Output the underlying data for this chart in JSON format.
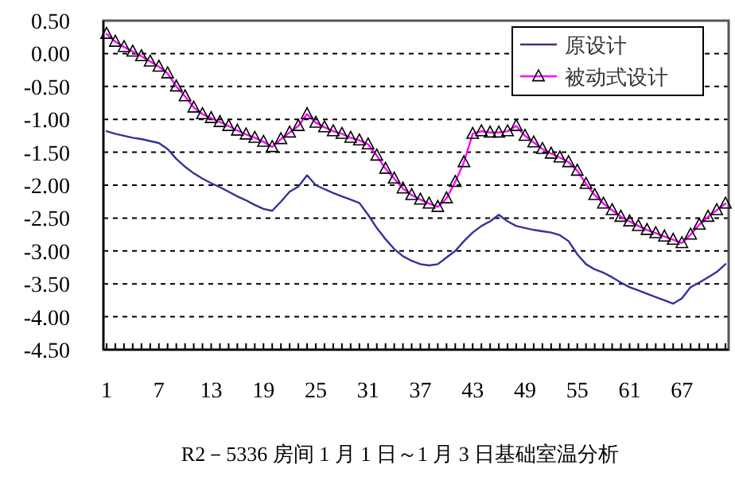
{
  "chart_data": {
    "type": "line",
    "title": "R2－5336 房间 1 月 1 日～1 月 3 日基础室温分析",
    "categories": [
      "1",
      null,
      null,
      null,
      null,
      null,
      "7",
      null,
      null,
      null,
      null,
      null,
      "13",
      null,
      null,
      null,
      null,
      null,
      "19",
      null,
      null,
      null,
      null,
      null,
      "25",
      null,
      null,
      null,
      null,
      null,
      "31",
      null,
      null,
      null,
      null,
      null,
      "37",
      null,
      null,
      null,
      null,
      null,
      "43",
      null,
      null,
      null,
      null,
      null,
      "49",
      null,
      null,
      null,
      null,
      null,
      "55",
      null,
      null,
      null,
      null,
      null,
      "61",
      null,
      null,
      null,
      null,
      null,
      "67",
      null,
      null,
      null,
      null,
      null
    ],
    "series": [
      {
        "name": "原设计",
        "color": "#333399",
        "marker": "none",
        "values": [
          -1.18,
          -1.22,
          -1.25,
          -1.28,
          -1.3,
          -1.33,
          -1.36,
          -1.45,
          -1.6,
          -1.72,
          -1.82,
          -1.9,
          -1.97,
          -2.03,
          -2.1,
          -2.17,
          -2.23,
          -2.3,
          -2.36,
          -2.39,
          -2.25,
          -2.1,
          -2.02,
          -1.85,
          -2.0,
          -2.06,
          -2.12,
          -2.17,
          -2.22,
          -2.27,
          -2.45,
          -2.65,
          -2.82,
          -2.97,
          -3.08,
          -3.15,
          -3.2,
          -3.22,
          -3.2,
          -3.1,
          -3.0,
          -2.85,
          -2.72,
          -2.62,
          -2.55,
          -2.45,
          -2.55,
          -2.62,
          -2.65,
          -2.68,
          -2.7,
          -2.72,
          -2.76,
          -2.85,
          -3.05,
          -3.2,
          -3.28,
          -3.33,
          -3.4,
          -3.48,
          -3.55,
          -3.6,
          -3.65,
          -3.7,
          -3.75,
          -3.8,
          -3.72,
          -3.55,
          -3.48,
          -3.4,
          -3.32,
          -3.2
        ]
      },
      {
        "name": "被动式设计",
        "color": "#ff00ff",
        "marker": "triangle",
        "values": [
          0.3,
          0.18,
          0.1,
          0.03,
          -0.04,
          -0.12,
          -0.2,
          -0.3,
          -0.5,
          -0.65,
          -0.82,
          -0.92,
          -0.98,
          -1.04,
          -1.1,
          -1.17,
          -1.23,
          -1.28,
          -1.34,
          -1.42,
          -1.3,
          -1.2,
          -1.1,
          -0.92,
          -1.05,
          -1.12,
          -1.18,
          -1.22,
          -1.28,
          -1.32,
          -1.38,
          -1.55,
          -1.75,
          -1.9,
          -2.05,
          -2.15,
          -2.22,
          -2.28,
          -2.33,
          -2.2,
          -1.95,
          -1.65,
          -1.22,
          -1.18,
          -1.2,
          -1.2,
          -1.18,
          -1.1,
          -1.25,
          -1.35,
          -1.45,
          -1.52,
          -1.58,
          -1.65,
          -1.78,
          -1.98,
          -2.15,
          -2.28,
          -2.38,
          -2.48,
          -2.55,
          -2.62,
          -2.68,
          -2.73,
          -2.78,
          -2.83,
          -2.88,
          -2.75,
          -2.6,
          -2.48,
          -2.38,
          -2.28
        ]
      }
    ],
    "ylim": [
      -4.5,
      0.5
    ],
    "yticks": [
      {
        "value": 0.5,
        "label": "0.50"
      },
      {
        "value": 0,
        "label": "0.00"
      },
      {
        "value": -0.5,
        "label": "-0.50"
      },
      {
        "value": -1,
        "label": "-1.00"
      },
      {
        "value": -1.5,
        "label": "-1.50"
      },
      {
        "value": -2,
        "label": "-2.00"
      },
      {
        "value": -2.5,
        "label": "-2.50"
      },
      {
        "value": -3,
        "label": "-3.00"
      },
      {
        "value": -3.5,
        "label": "-3.50"
      },
      {
        "value": -4,
        "label": "-4.00"
      },
      {
        "value": -4.5,
        "label": "-4.50"
      }
    ],
    "grid": "y",
    "legend": "top right",
    "line_style": "solid"
  }
}
